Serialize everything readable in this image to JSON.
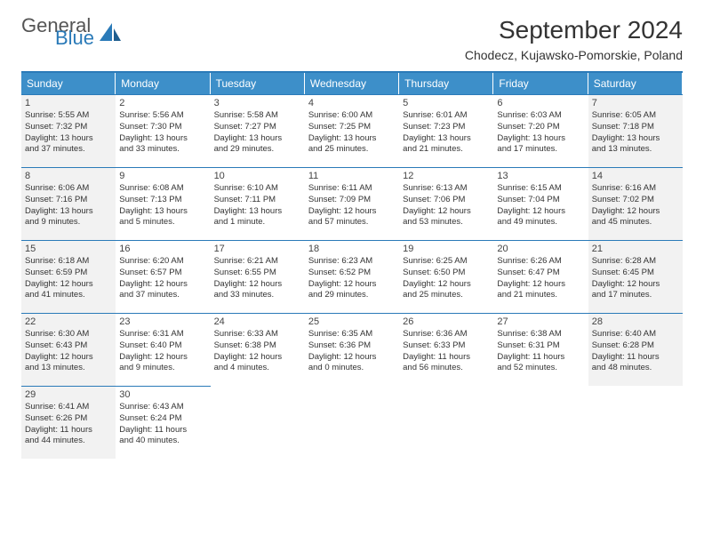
{
  "brand": {
    "text1": "General",
    "text2": "Blue",
    "color_gray": "#555555",
    "color_blue": "#2a7ab8"
  },
  "title": "September 2024",
  "location": "Chodecz, Kujawsko-Pomorskie, Poland",
  "colors": {
    "header_bg": "#3d8fc9",
    "header_text": "#ffffff",
    "rule": "#2a7ab8",
    "shaded_bg": "#f2f2f2",
    "body_text": "#333333"
  },
  "day_headers": [
    "Sunday",
    "Monday",
    "Tuesday",
    "Wednesday",
    "Thursday",
    "Friday",
    "Saturday"
  ],
  "weeks": [
    [
      {
        "n": "1",
        "shaded": true,
        "l1": "Sunrise: 5:55 AM",
        "l2": "Sunset: 7:32 PM",
        "l3": "Daylight: 13 hours",
        "l4": "and 37 minutes."
      },
      {
        "n": "2",
        "shaded": false,
        "l1": "Sunrise: 5:56 AM",
        "l2": "Sunset: 7:30 PM",
        "l3": "Daylight: 13 hours",
        "l4": "and 33 minutes."
      },
      {
        "n": "3",
        "shaded": false,
        "l1": "Sunrise: 5:58 AM",
        "l2": "Sunset: 7:27 PM",
        "l3": "Daylight: 13 hours",
        "l4": "and 29 minutes."
      },
      {
        "n": "4",
        "shaded": false,
        "l1": "Sunrise: 6:00 AM",
        "l2": "Sunset: 7:25 PM",
        "l3": "Daylight: 13 hours",
        "l4": "and 25 minutes."
      },
      {
        "n": "5",
        "shaded": false,
        "l1": "Sunrise: 6:01 AM",
        "l2": "Sunset: 7:23 PM",
        "l3": "Daylight: 13 hours",
        "l4": "and 21 minutes."
      },
      {
        "n": "6",
        "shaded": false,
        "l1": "Sunrise: 6:03 AM",
        "l2": "Sunset: 7:20 PM",
        "l3": "Daylight: 13 hours",
        "l4": "and 17 minutes."
      },
      {
        "n": "7",
        "shaded": true,
        "l1": "Sunrise: 6:05 AM",
        "l2": "Sunset: 7:18 PM",
        "l3": "Daylight: 13 hours",
        "l4": "and 13 minutes."
      }
    ],
    [
      {
        "n": "8",
        "shaded": true,
        "l1": "Sunrise: 6:06 AM",
        "l2": "Sunset: 7:16 PM",
        "l3": "Daylight: 13 hours",
        "l4": "and 9 minutes."
      },
      {
        "n": "9",
        "shaded": false,
        "l1": "Sunrise: 6:08 AM",
        "l2": "Sunset: 7:13 PM",
        "l3": "Daylight: 13 hours",
        "l4": "and 5 minutes."
      },
      {
        "n": "10",
        "shaded": false,
        "l1": "Sunrise: 6:10 AM",
        "l2": "Sunset: 7:11 PM",
        "l3": "Daylight: 13 hours",
        "l4": "and 1 minute."
      },
      {
        "n": "11",
        "shaded": false,
        "l1": "Sunrise: 6:11 AM",
        "l2": "Sunset: 7:09 PM",
        "l3": "Daylight: 12 hours",
        "l4": "and 57 minutes."
      },
      {
        "n": "12",
        "shaded": false,
        "l1": "Sunrise: 6:13 AM",
        "l2": "Sunset: 7:06 PM",
        "l3": "Daylight: 12 hours",
        "l4": "and 53 minutes."
      },
      {
        "n": "13",
        "shaded": false,
        "l1": "Sunrise: 6:15 AM",
        "l2": "Sunset: 7:04 PM",
        "l3": "Daylight: 12 hours",
        "l4": "and 49 minutes."
      },
      {
        "n": "14",
        "shaded": true,
        "l1": "Sunrise: 6:16 AM",
        "l2": "Sunset: 7:02 PM",
        "l3": "Daylight: 12 hours",
        "l4": "and 45 minutes."
      }
    ],
    [
      {
        "n": "15",
        "shaded": true,
        "l1": "Sunrise: 6:18 AM",
        "l2": "Sunset: 6:59 PM",
        "l3": "Daylight: 12 hours",
        "l4": "and 41 minutes."
      },
      {
        "n": "16",
        "shaded": false,
        "l1": "Sunrise: 6:20 AM",
        "l2": "Sunset: 6:57 PM",
        "l3": "Daylight: 12 hours",
        "l4": "and 37 minutes."
      },
      {
        "n": "17",
        "shaded": false,
        "l1": "Sunrise: 6:21 AM",
        "l2": "Sunset: 6:55 PM",
        "l3": "Daylight: 12 hours",
        "l4": "and 33 minutes."
      },
      {
        "n": "18",
        "shaded": false,
        "l1": "Sunrise: 6:23 AM",
        "l2": "Sunset: 6:52 PM",
        "l3": "Daylight: 12 hours",
        "l4": "and 29 minutes."
      },
      {
        "n": "19",
        "shaded": false,
        "l1": "Sunrise: 6:25 AM",
        "l2": "Sunset: 6:50 PM",
        "l3": "Daylight: 12 hours",
        "l4": "and 25 minutes."
      },
      {
        "n": "20",
        "shaded": false,
        "l1": "Sunrise: 6:26 AM",
        "l2": "Sunset: 6:47 PM",
        "l3": "Daylight: 12 hours",
        "l4": "and 21 minutes."
      },
      {
        "n": "21",
        "shaded": true,
        "l1": "Sunrise: 6:28 AM",
        "l2": "Sunset: 6:45 PM",
        "l3": "Daylight: 12 hours",
        "l4": "and 17 minutes."
      }
    ],
    [
      {
        "n": "22",
        "shaded": true,
        "l1": "Sunrise: 6:30 AM",
        "l2": "Sunset: 6:43 PM",
        "l3": "Daylight: 12 hours",
        "l4": "and 13 minutes."
      },
      {
        "n": "23",
        "shaded": false,
        "l1": "Sunrise: 6:31 AM",
        "l2": "Sunset: 6:40 PM",
        "l3": "Daylight: 12 hours",
        "l4": "and 9 minutes."
      },
      {
        "n": "24",
        "shaded": false,
        "l1": "Sunrise: 6:33 AM",
        "l2": "Sunset: 6:38 PM",
        "l3": "Daylight: 12 hours",
        "l4": "and 4 minutes."
      },
      {
        "n": "25",
        "shaded": false,
        "l1": "Sunrise: 6:35 AM",
        "l2": "Sunset: 6:36 PM",
        "l3": "Daylight: 12 hours",
        "l4": "and 0 minutes."
      },
      {
        "n": "26",
        "shaded": false,
        "l1": "Sunrise: 6:36 AM",
        "l2": "Sunset: 6:33 PM",
        "l3": "Daylight: 11 hours",
        "l4": "and 56 minutes."
      },
      {
        "n": "27",
        "shaded": false,
        "l1": "Sunrise: 6:38 AM",
        "l2": "Sunset: 6:31 PM",
        "l3": "Daylight: 11 hours",
        "l4": "and 52 minutes."
      },
      {
        "n": "28",
        "shaded": true,
        "l1": "Sunrise: 6:40 AM",
        "l2": "Sunset: 6:28 PM",
        "l3": "Daylight: 11 hours",
        "l4": "and 48 minutes."
      }
    ],
    [
      {
        "n": "29",
        "shaded": true,
        "l1": "Sunrise: 6:41 AM",
        "l2": "Sunset: 6:26 PM",
        "l3": "Daylight: 11 hours",
        "l4": "and 44 minutes."
      },
      {
        "n": "30",
        "shaded": false,
        "l1": "Sunrise: 6:43 AM",
        "l2": "Sunset: 6:24 PM",
        "l3": "Daylight: 11 hours",
        "l4": "and 40 minutes."
      },
      null,
      null,
      null,
      null,
      null
    ]
  ]
}
